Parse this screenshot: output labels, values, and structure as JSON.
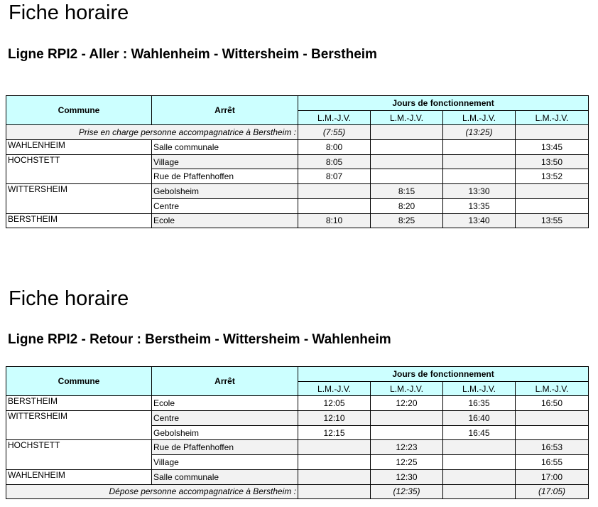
{
  "timetables": [
    {
      "title": "Fiche horaire",
      "subtitle": "Ligne RPI2 - Aller : Wahlenheim - Wittersheim - Berstheim",
      "header": {
        "commune": "Commune",
        "stop": "Arrêt",
        "days_group": "Jours de fonctionnement",
        "days": [
          "L.M.-J.V.",
          "L.M.-J.V.",
          "L.M.-J.V.",
          "L.M.-J.V."
        ]
      },
      "note_before": {
        "text": "Prise en charge personne accompagnatrice à Berstheim :",
        "times": [
          "(7:55)",
          null,
          "(13:25)",
          null
        ]
      },
      "rows": [
        {
          "commune": "WAHLENHEIM",
          "stop": "Salle communale",
          "times": [
            "8:00",
            null,
            null,
            "13:45"
          ]
        },
        {
          "commune": "HOCHSTETT",
          "stop": "Village",
          "times": [
            "8:05",
            null,
            null,
            "13:50"
          ]
        },
        {
          "commune": null,
          "stop": "Rue de Pfaffenhoffen",
          "times": [
            "8:07",
            null,
            null,
            "13:52"
          ]
        },
        {
          "commune": "WITTERSHEIM",
          "stop": "Gebolsheim",
          "times": [
            null,
            "8:15",
            "13:30",
            null
          ]
        },
        {
          "commune": null,
          "stop": "Centre",
          "times": [
            null,
            "8:20",
            "13:35",
            null
          ]
        },
        {
          "commune": "BERSTHEIM",
          "stop": "Ecole",
          "times": [
            "8:10",
            "8:25",
            "13:40",
            "13:55"
          ]
        }
      ]
    },
    {
      "title": "Fiche horaire",
      "subtitle": "Ligne RPI2 - Retour : Berstheim - Wittersheim - Wahlenheim",
      "header": {
        "commune": "Commune",
        "stop": "Arrêt",
        "days_group": "Jours de fonctionnement",
        "days": [
          "L.M.-J.V.",
          "L.M.-J.V.",
          "L.M.-J.V.",
          "L.M.-J.V."
        ]
      },
      "rows": [
        {
          "commune": "BERSTHEIM",
          "stop": "Ecole",
          "times": [
            "12:05",
            "12:20",
            "16:35",
            "16:50"
          ]
        },
        {
          "commune": "WITTERSHEIM",
          "stop": "Centre",
          "times": [
            "12:10",
            null,
            "16:40",
            null
          ]
        },
        {
          "commune": null,
          "stop": "Gebolsheim",
          "times": [
            "12:15",
            null,
            "16:45",
            null
          ]
        },
        {
          "commune": "HOCHSTETT",
          "stop": "Rue de Pfaffenhoffen",
          "times": [
            null,
            "12:23",
            null,
            "16:53"
          ]
        },
        {
          "commune": null,
          "stop": "Village",
          "times": [
            null,
            "12:25",
            null,
            "16:55"
          ]
        },
        {
          "commune": "WAHLENHEIM",
          "stop": "Salle communale",
          "times": [
            null,
            "12:30",
            null,
            "17:00"
          ]
        }
      ],
      "note_after": {
        "text": "Dépose personne accompagnatrice à Berstheim :",
        "times": [
          null,
          "(12:35)",
          null,
          "(17:05)"
        ]
      }
    }
  ]
}
